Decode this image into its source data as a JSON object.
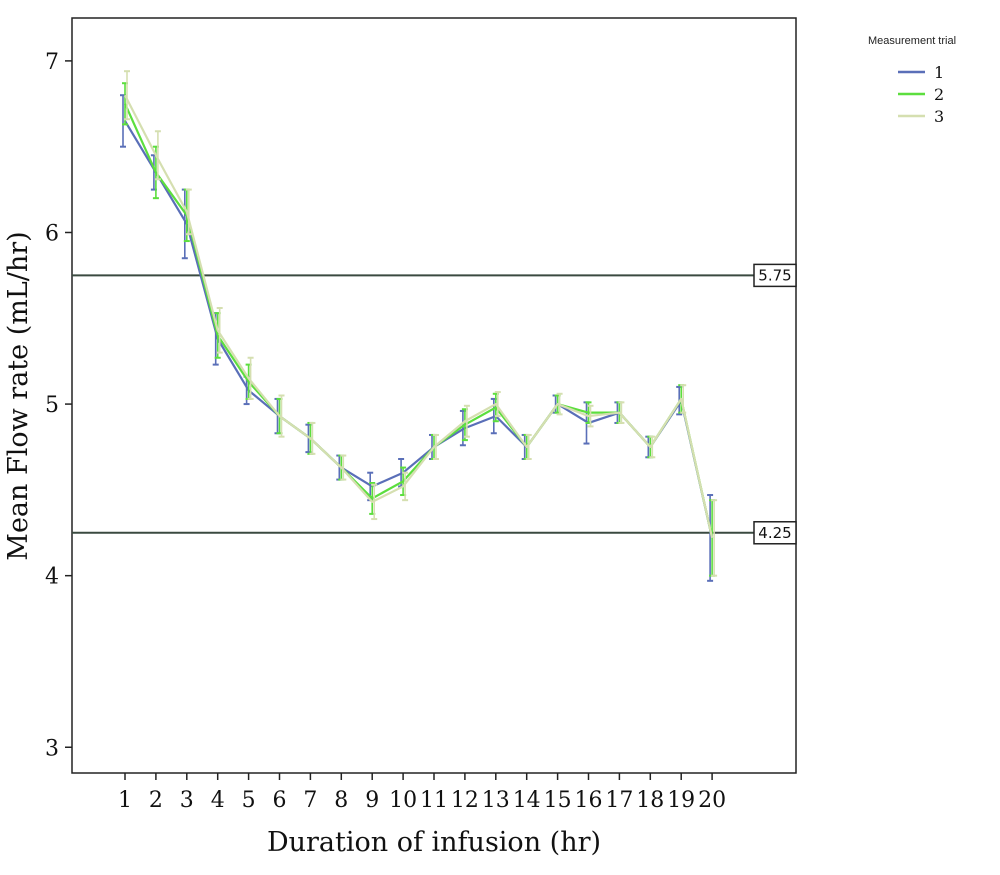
{
  "chart_data": {
    "type": "line",
    "xlabel": "Duration of infusion (hr)",
    "ylabel": "Mean Flow rate (mL/hr)",
    "categories": [
      "1",
      "2",
      "3",
      "4",
      "5",
      "6",
      "7",
      "8",
      "9",
      "10",
      "11",
      "12",
      "13",
      "14",
      "15",
      "16",
      "17",
      "18",
      "19",
      "20"
    ],
    "ylim": [
      2.85,
      7.25
    ],
    "yticks": [
      3,
      4,
      5,
      6,
      7
    ],
    "grid": false,
    "legend": {
      "title": "Measurement trial",
      "placement": "top-right, outside plot"
    },
    "series": [
      {
        "name": "1",
        "color": "#5a6fb8",
        "values": [
          6.65,
          6.35,
          6.05,
          5.38,
          5.08,
          4.93,
          4.8,
          4.63,
          4.52,
          4.6,
          4.75,
          4.86,
          4.93,
          4.75,
          5.0,
          4.89,
          4.95,
          4.75,
          5.02,
          4.22
        ],
        "error": [
          0.15,
          0.1,
          0.2,
          0.15,
          0.08,
          0.1,
          0.08,
          0.07,
          0.08,
          0.08,
          0.07,
          0.1,
          0.1,
          0.07,
          0.05,
          0.12,
          0.06,
          0.06,
          0.08,
          0.25
        ]
      },
      {
        "name": "2",
        "color": "#5cde3e",
        "values": [
          6.75,
          6.35,
          6.1,
          5.4,
          5.13,
          4.93,
          4.8,
          4.63,
          4.45,
          4.55,
          4.75,
          4.88,
          4.98,
          4.75,
          5.0,
          4.95,
          4.95,
          4.75,
          5.03,
          4.22
        ],
        "error": [
          0.12,
          0.15,
          0.15,
          0.13,
          0.1,
          0.1,
          0.09,
          0.07,
          0.09,
          0.08,
          0.07,
          0.09,
          0.08,
          0.07,
          0.05,
          0.06,
          0.06,
          0.06,
          0.08,
          0.22
        ]
      },
      {
        "name": "3",
        "color": "#d5dfb0",
        "values": [
          6.8,
          6.45,
          6.12,
          5.43,
          5.15,
          4.93,
          4.8,
          4.63,
          4.43,
          4.52,
          4.75,
          4.9,
          5.0,
          4.75,
          5.0,
          4.93,
          4.95,
          4.75,
          5.03,
          4.22
        ],
        "error": [
          0.14,
          0.14,
          0.13,
          0.13,
          0.12,
          0.12,
          0.09,
          0.07,
          0.1,
          0.08,
          0.07,
          0.09,
          0.07,
          0.07,
          0.06,
          0.06,
          0.06,
          0.06,
          0.08,
          0.22
        ]
      }
    ],
    "reference_lines": [
      {
        "value": 5.75,
        "label": "5.75"
      },
      {
        "value": 4.25,
        "label": "4.25"
      }
    ]
  }
}
